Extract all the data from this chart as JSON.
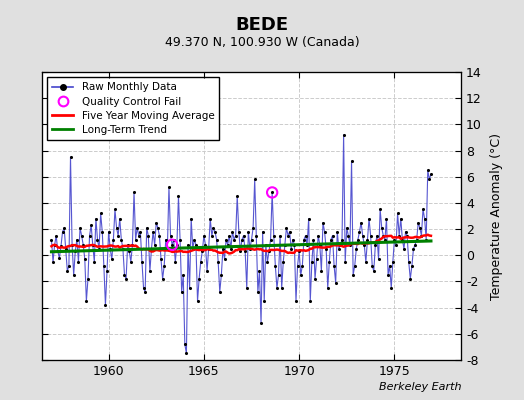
{
  "title": "BEDE",
  "subtitle": "49.370 N, 100.930 W (Canada)",
  "ylabel": "Temperature Anomaly (°C)",
  "credit": "Berkeley Earth",
  "ylim": [
    -8,
    14
  ],
  "yticks": [
    -8,
    -6,
    -4,
    -2,
    0,
    2,
    4,
    6,
    8,
    10,
    12,
    14
  ],
  "xlim": [
    1956.5,
    1978.5
  ],
  "xticks": [
    1960,
    1965,
    1970,
    1975
  ],
  "outer_bg": "#e0e0e0",
  "plot_bg": "#ffffff",
  "grid_color": "#cccccc",
  "line_color": "#4444cc",
  "dot_color": "black",
  "ma_color": "red",
  "trend_color": "green",
  "qc_color": "magenta",
  "start_year": 1957,
  "start_month": 1,
  "raw_monthly": [
    1.2,
    -0.5,
    0.8,
    1.5,
    0.3,
    -0.2,
    0.7,
    1.8,
    2.1,
    0.5,
    -1.2,
    -0.8,
    7.5,
    0.8,
    -1.5,
    0.3,
    1.2,
    -0.5,
    2.1,
    1.5,
    0.8,
    -0.3,
    -3.5,
    -1.8,
    1.5,
    2.3,
    0.8,
    -0.5,
    2.8,
    1.2,
    0.5,
    3.2,
    1.8,
    -0.8,
    -3.8,
    -1.2,
    1.8,
    0.5,
    -0.3,
    1.2,
    3.5,
    2.1,
    1.5,
    2.8,
    1.2,
    0.5,
    -1.5,
    -1.8,
    0.8,
    0.3,
    -0.5,
    0.8,
    4.8,
    1.2,
    2.1,
    1.5,
    1.8,
    -0.5,
    -2.5,
    -2.8,
    2.1,
    1.5,
    -1.2,
    0.5,
    1.8,
    0.8,
    2.5,
    2.1,
    1.5,
    -0.3,
    -1.8,
    -0.8,
    1.2,
    0.5,
    5.2,
    1.5,
    0.8,
    1.2,
    -0.5,
    0.8,
    4.5,
    1.2,
    -2.8,
    -1.5,
    -6.8,
    -7.5,
    0.8,
    -2.5,
    2.8,
    0.5,
    1.2,
    0.8,
    -3.5,
    -1.8,
    -0.5,
    0.3,
    1.5,
    0.8,
    -1.2,
    0.5,
    2.8,
    1.5,
    2.1,
    1.8,
    1.2,
    -0.5,
    -2.8,
    -1.5,
    0.5,
    -0.3,
    1.2,
    0.8,
    1.5,
    0.5,
    1.8,
    1.2,
    1.5,
    4.5,
    1.8,
    0.3,
    1.2,
    1.5,
    0.3,
    -2.5,
    1.8,
    0.5,
    1.2,
    2.1,
    5.8,
    1.5,
    -2.8,
    -1.2,
    -5.2,
    1.8,
    -3.5,
    0.8,
    -0.5,
    0.3,
    1.2,
    4.8,
    1.5,
    -0.8,
    -2.5,
    -1.5,
    1.5,
    -2.5,
    -0.5,
    0.8,
    2.1,
    1.5,
    1.8,
    0.5,
    1.2,
    0.8,
    -3.5,
    -0.8,
    0.3,
    -1.5,
    -0.8,
    1.2,
    1.5,
    0.8,
    2.8,
    -3.5,
    -0.5,
    1.2,
    -1.8,
    -0.3,
    1.5,
    0.8,
    -1.2,
    2.5,
    1.8,
    0.5,
    -2.5,
    -0.5,
    1.2,
    1.5,
    -0.8,
    -2.1,
    1.8,
    0.5,
    0.8,
    1.2,
    9.2,
    -0.5,
    2.1,
    1.5,
    0.8,
    7.2,
    -1.5,
    -0.8,
    0.5,
    1.2,
    1.8,
    2.5,
    1.5,
    0.8,
    -0.5,
    1.2,
    2.8,
    1.5,
    -0.8,
    -1.2,
    0.8,
    1.5,
    -0.3,
    3.5,
    2.1,
    1.5,
    1.2,
    2.8,
    -1.5,
    -0.8,
    -2.5,
    -0.5,
    1.2,
    0.8,
    3.2,
    1.5,
    2.8,
    1.2,
    0.5,
    1.8,
    1.5,
    -0.5,
    -1.8,
    -0.8,
    0.5,
    0.8,
    1.2,
    2.5,
    2.1,
    1.5,
    3.5,
    2.8,
    1.2,
    6.5,
    5.8,
    6.2
  ],
  "qc_fail_indices": [
    76,
    139
  ],
  "legend_labels": [
    "Raw Monthly Data",
    "Quality Control Fail",
    "Five Year Moving Average",
    "Long-Term Trend"
  ]
}
